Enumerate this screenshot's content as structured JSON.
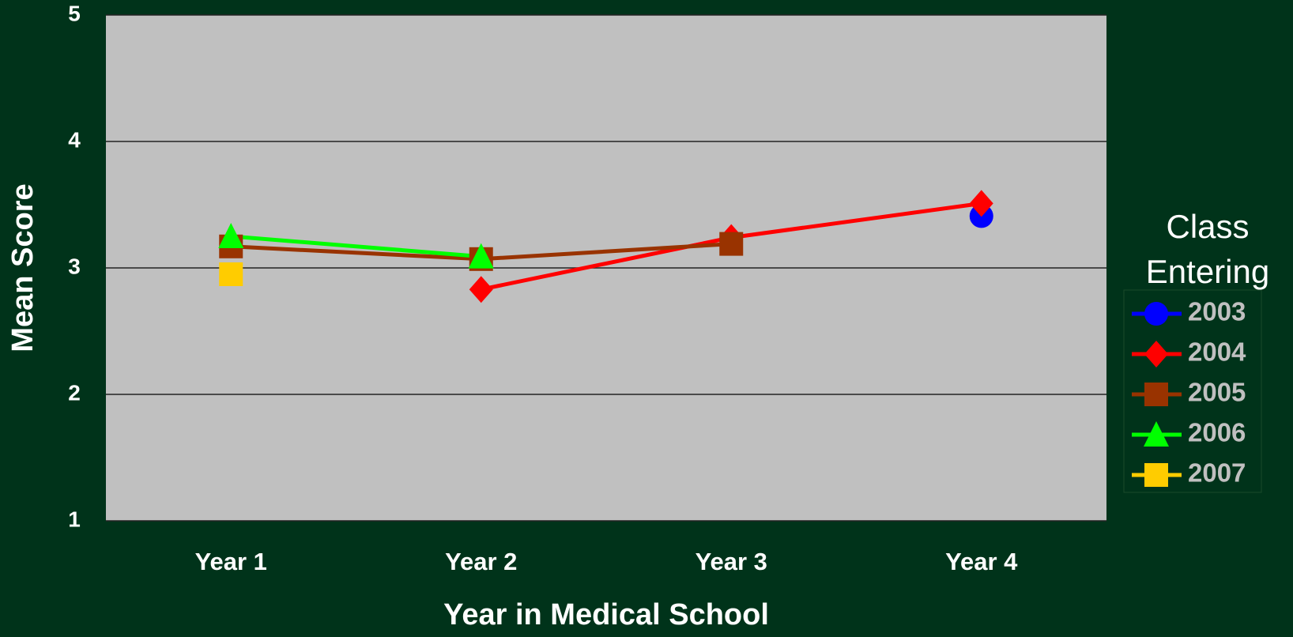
{
  "chart_data": {
    "type": "line",
    "x_label": "Year in Medical School",
    "y_label": "Mean Score",
    "categories": [
      "Year 1",
      "Year 2",
      "Year 3",
      "Year 4"
    ],
    "ylim": [
      1,
      5
    ],
    "yticks": [
      1,
      2,
      3,
      4,
      5
    ],
    "grid": true,
    "legend_title": "Class Entering",
    "legend": "right",
    "series": [
      {
        "name": "2003",
        "color": "#0000ff",
        "marker": "circle",
        "values": [
          null,
          null,
          null,
          3.41
        ]
      },
      {
        "name": "2004",
        "color": "#ff0000",
        "marker": "diamond",
        "values": [
          null,
          2.83,
          3.24,
          3.51
        ]
      },
      {
        "name": "2005",
        "color": "#993300",
        "marker": "square",
        "values": [
          3.17,
          3.07,
          3.19,
          null
        ]
      },
      {
        "name": "2006",
        "color": "#00ff00",
        "marker": "triangle",
        "values": [
          3.25,
          3.09,
          null,
          null
        ]
      },
      {
        "name": "2007",
        "color": "#ffcc00",
        "marker": "square",
        "values": [
          2.95,
          null,
          null,
          null
        ]
      }
    ]
  }
}
